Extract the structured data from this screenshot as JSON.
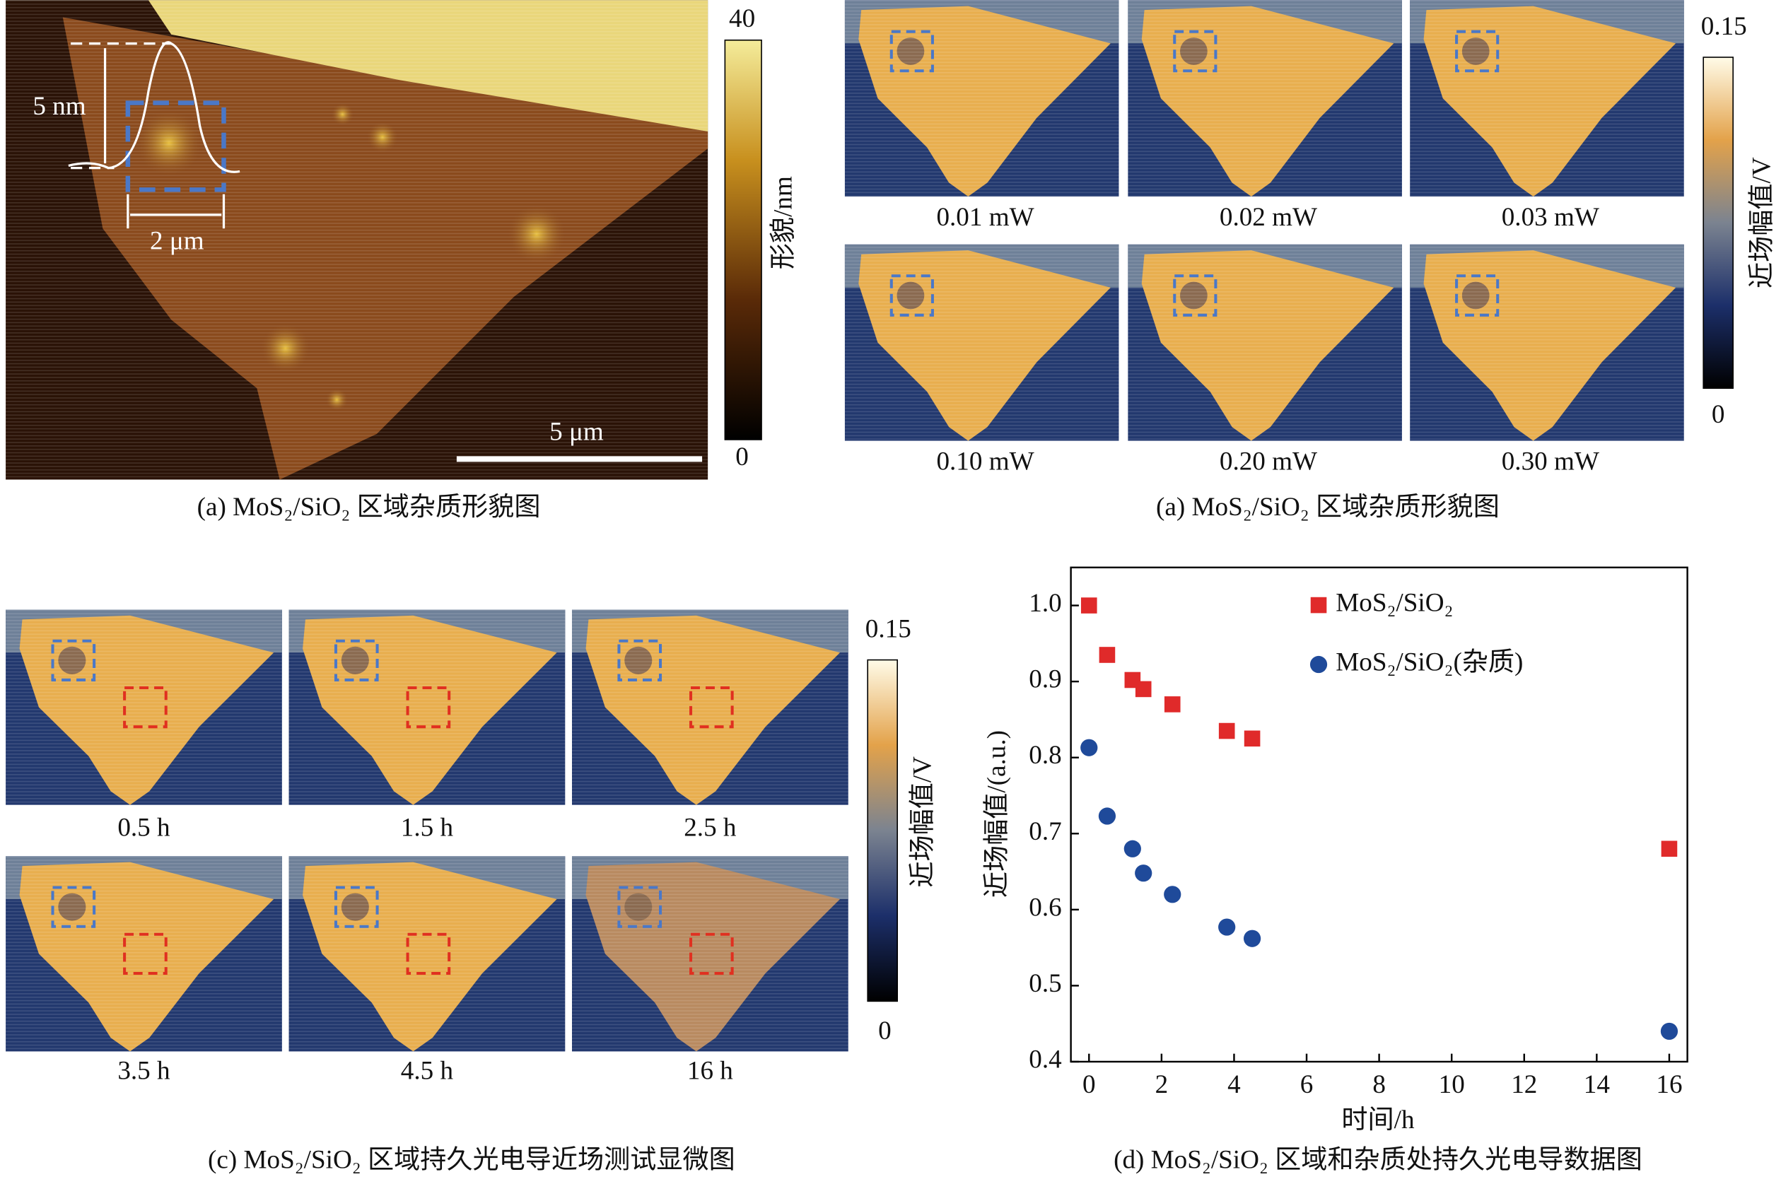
{
  "panel_a": {
    "caption": "(a) MoS₂/SiO₂ 区域杂质形貌图",
    "colorbar_label": "形貌/nm",
    "colorbar_max": 40,
    "colorbar_min": 0,
    "profile_height": "5 nm",
    "profile_width": "2 μm",
    "scale_bar": "5 μm"
  },
  "panel_b": {
    "caption": "(a) MoS₂/SiO₂ 区域杂质形貌图",
    "colorbar_label": "近场幅值/V",
    "colorbar_max": 0.15,
    "colorbar_min": 0,
    "images": [
      "0.01 mW",
      "0.02 mW",
      "0.03 mW",
      "0.10 mW",
      "0.20 mW",
      "0.30 mW"
    ]
  },
  "panel_c": {
    "caption": "(c) MoS₂/SiO₂ 区域持久光电导近场测试显微图",
    "colorbar_label": "近场幅值/V",
    "colorbar_max": 0.15,
    "colorbar_min": 0,
    "images": [
      "0.5 h",
      "1.5 h",
      "2.5 h",
      "3.5 h",
      "4.5 h",
      "16 h"
    ]
  },
  "chart_data": {
    "type": "scatter",
    "caption": "(d) MoS₂/SiO₂ 区域和杂质处持久光电导数据图",
    "xlabel": "时间/h",
    "ylabel": "近场幅值/(a.u.)",
    "xlim": [
      -0.5,
      16.5
    ],
    "ylim": [
      0.4,
      1.05
    ],
    "xticks": [
      0,
      2,
      4,
      6,
      8,
      10,
      12,
      14,
      16
    ],
    "yticks": [
      0.4,
      0.5,
      0.6,
      0.7,
      0.8,
      0.9,
      {
        "value": 1,
        "label": "1.0"
      }
    ],
    "legend": "upper center",
    "series": [
      {
        "name": "MoS₂/SiO₂",
        "color": "#e02a2a",
        "marker": "square",
        "x": [
          0,
          0.5,
          1.2,
          1.5,
          2.3,
          3.8,
          4.5,
          16
        ],
        "values": [
          1.0,
          0.935,
          0.902,
          0.89,
          0.87,
          0.835,
          0.825,
          0.68
        ]
      },
      {
        "name": "MoS₂/SiO₂(杂质)",
        "color": "#1f4a9a",
        "marker": "circle",
        "x": [
          0,
          0.5,
          1.2,
          1.5,
          2.3,
          3.8,
          4.5,
          16
        ],
        "values": [
          0.813,
          0.723,
          0.68,
          0.648,
          0.62,
          0.577,
          0.562,
          0.44
        ]
      }
    ]
  }
}
